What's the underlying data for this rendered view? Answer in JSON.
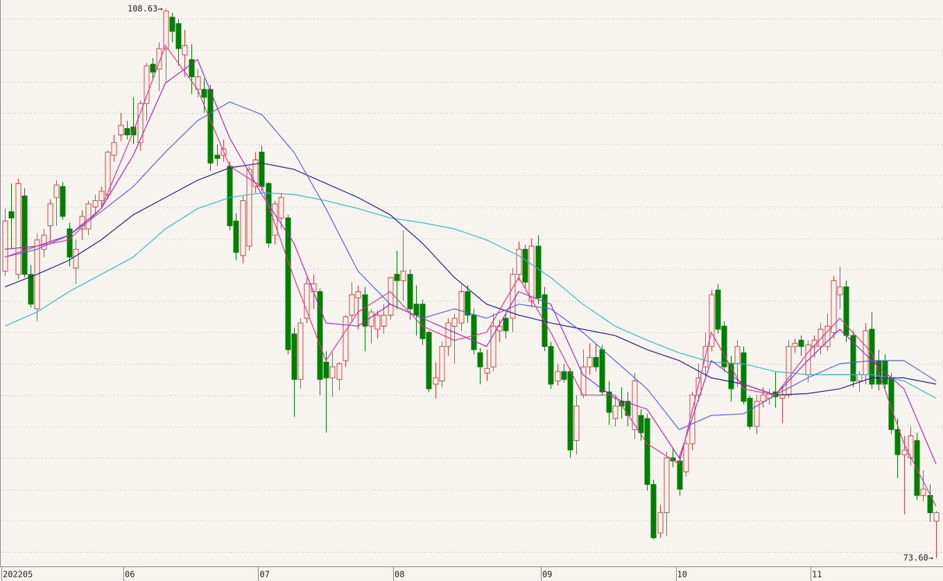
{
  "chart_data": {
    "type": "candlestick",
    "ylim": [
      73.07,
      109.2
    ],
    "grid_lines": [
      74,
      76,
      78,
      80,
      82,
      84,
      86,
      88,
      90,
      92,
      94,
      96,
      98,
      100,
      102,
      104,
      106,
      108
    ],
    "up_color": "#e0403c",
    "down_color": "#008000",
    "categories": [
      "202205",
      null,
      null,
      null,
      null,
      null,
      null,
      null,
      null,
      null,
      null,
      null,
      null,
      null,
      null,
      null,
      null,
      null,
      null,
      "06",
      null,
      null,
      null,
      null,
      null,
      null,
      null,
      null,
      null,
      null,
      null,
      null,
      null,
      null,
      null,
      null,
      null,
      null,
      null,
      null,
      "07",
      null,
      null,
      null,
      null,
      null,
      null,
      null,
      null,
      null,
      null,
      null,
      null,
      null,
      null,
      null,
      null,
      null,
      null,
      null,
      null,
      "08",
      null,
      null,
      null,
      null,
      null,
      null,
      null,
      null,
      null,
      null,
      null,
      null,
      null,
      null,
      null,
      null,
      null,
      null,
      null,
      null,
      null,
      null,
      "09",
      null,
      null,
      null,
      null,
      null,
      null,
      null,
      null,
      null,
      null,
      null,
      null,
      null,
      null,
      null,
      null,
      null,
      null,
      null,
      null,
      "10",
      null,
      null,
      null,
      null,
      null,
      null,
      null,
      null,
      null,
      null,
      null,
      null,
      null,
      null,
      null,
      null,
      null,
      null,
      null,
      null,
      "11",
      null,
      null,
      null,
      null,
      null,
      null,
      null,
      null,
      null,
      null,
      null,
      null,
      null,
      null,
      null,
      null,
      null,
      null,
      null
    ],
    "ohlc": [
      [
        91.9,
        95.9,
        91.6,
        95.1
      ],
      [
        95.7,
        97.5,
        93.3,
        95.3
      ],
      [
        91.7,
        97.8,
        91.4,
        97.5
      ],
      [
        96.7,
        97.2,
        91.5,
        91.7
      ],
      [
        91.7,
        92.3,
        89.6,
        89.8
      ],
      [
        89.5,
        94.3,
        88.7,
        93.9
      ],
      [
        93.3,
        94.6,
        92.8,
        94.2
      ],
      [
        94.8,
        96.5,
        93.6,
        96.2
      ],
      [
        96.6,
        97.7,
        94.8,
        97.4
      ],
      [
        97.3,
        97.6,
        95.2,
        95.4
      ],
      [
        94.6,
        95.0,
        92.2,
        92.8
      ],
      [
        92.1,
        93.9,
        91.1,
        93.3
      ],
      [
        94.6,
        95.8,
        93.9,
        95.4
      ],
      [
        94.6,
        96.4,
        94.2,
        96.2
      ],
      [
        96.0,
        96.8,
        95.6,
        96.4
      ],
      [
        96.4,
        97.3,
        96.0,
        97.0
      ],
      [
        96.8,
        99.6,
        96.5,
        99.5
      ],
      [
        99.3,
        100.6,
        98.9,
        100.1
      ],
      [
        100.6,
        102.0,
        100.2,
        101.2
      ],
      [
        101.0,
        101.5,
        100.3,
        100.6
      ],
      [
        101.1,
        103.0,
        100.0,
        100.6
      ],
      [
        100.1,
        102.8,
        99.6,
        102.6
      ],
      [
        102.6,
        105.2,
        101.5,
        105.0
      ],
      [
        105.1,
        105.5,
        104.1,
        104.6
      ],
      [
        104.8,
        106.5,
        103.4,
        106.1
      ],
      [
        106.1,
        108.63,
        104.0,
        108.5
      ],
      [
        108.1,
        108.4,
        106.5,
        107.2
      ],
      [
        107.7,
        108.0,
        105.0,
        106.1
      ],
      [
        105.7,
        107.3,
        104.3,
        106.3
      ],
      [
        105.4,
        106.4,
        103.2,
        104.3
      ],
      [
        103.5,
        104.8,
        103.0,
        104.3
      ],
      [
        103.5,
        104.2,
        102.0,
        103.0
      ],
      [
        103.5,
        103.8,
        98.3,
        98.8
      ],
      [
        99.3,
        100.0,
        98.6,
        99.1
      ],
      [
        99.3,
        100.3,
        98.9,
        99.7
      ],
      [
        98.6,
        98.9,
        94.5,
        94.8
      ],
      [
        95.1,
        95.6,
        92.6,
        93.1
      ],
      [
        92.9,
        96.7,
        92.4,
        96.4
      ],
      [
        93.5,
        98.6,
        93.2,
        98.4
      ],
      [
        97.3,
        99.5,
        96.9,
        99.0
      ],
      [
        99.5,
        99.9,
        97.0,
        97.3
      ],
      [
        97.5,
        97.6,
        93.4,
        93.7
      ],
      [
        94.2,
        96.4,
        93.6,
        96.2
      ],
      [
        95.3,
        96.9,
        94.6,
        96.6
      ],
      [
        95.3,
        95.5,
        86.6,
        86.9
      ],
      [
        87.9,
        88.3,
        82.6,
        85.0
      ],
      [
        85.0,
        88.9,
        84.4,
        88.6
      ],
      [
        88.9,
        91.5,
        88.6,
        91.1
      ],
      [
        90.6,
        91.7,
        89.5,
        91.1
      ],
      [
        90.6,
        90.8,
        84.0,
        85.0
      ],
      [
        86.1,
        86.8,
        81.6,
        85.1
      ],
      [
        85.1,
        86.7,
        83.9,
        85.8
      ],
      [
        85.0,
        86.1,
        84.3,
        86.0
      ],
      [
        86.2,
        89.1,
        85.8,
        89.0
      ],
      [
        89.1,
        91.2,
        88.6,
        90.4
      ],
      [
        90.2,
        91.0,
        88.2,
        90.6
      ],
      [
        90.4,
        90.9,
        86.8,
        88.4
      ],
      [
        88.4,
        89.5,
        87.3,
        89.3
      ],
      [
        88.2,
        89.4,
        87.6,
        89.1
      ],
      [
        88.4,
        89.8,
        87.9,
        89.1
      ],
      [
        89.1,
        91.5,
        88.8,
        91.5
      ],
      [
        91.7,
        93.2,
        89.5,
        91.3
      ],
      [
        91.3,
        94.5,
        90.0,
        91.9
      ],
      [
        91.7,
        92.0,
        88.8,
        89.5
      ],
      [
        89.8,
        91.0,
        87.8,
        89.1
      ],
      [
        89.8,
        90.1,
        87.2,
        87.6
      ],
      [
        88.0,
        88.1,
        84.2,
        84.4
      ],
      [
        84.7,
        86.1,
        83.8,
        85.1
      ],
      [
        84.9,
        87.4,
        84.5,
        87.1
      ],
      [
        87.1,
        88.9,
        86.5,
        88.6
      ],
      [
        88.4,
        89.2,
        86.0,
        88.9
      ],
      [
        88.6,
        91.0,
        88.1,
        90.6
      ],
      [
        90.6,
        91.0,
        88.6,
        89.1
      ],
      [
        89.1,
        89.5,
        86.6,
        86.9
      ],
      [
        86.7,
        87.0,
        84.7,
        85.8
      ],
      [
        85.4,
        86.9,
        84.9,
        85.7
      ],
      [
        85.8,
        89.2,
        85.5,
        88.4
      ],
      [
        88.1,
        88.8,
        87.4,
        88.4
      ],
      [
        88.9,
        89.2,
        87.6,
        88.1
      ],
      [
        88.9,
        92.1,
        88.0,
        91.7
      ],
      [
        91.7,
        93.8,
        91.3,
        93.3
      ],
      [
        93.3,
        93.6,
        90.8,
        91.2
      ],
      [
        90.0,
        94.0,
        89.6,
        93.5
      ],
      [
        93.5,
        94.2,
        89.8,
        90.2
      ],
      [
        90.4,
        90.9,
        86.8,
        87.1
      ],
      [
        87.1,
        87.4,
        84.4,
        84.7
      ],
      [
        84.9,
        86.0,
        84.6,
        85.5
      ],
      [
        85.5,
        86.0,
        84.8,
        85.0
      ],
      [
        85.5,
        85.7,
        80.0,
        80.5
      ],
      [
        81.1,
        84.0,
        80.2,
        83.3
      ],
      [
        84.0,
        86.9,
        83.8,
        85.8
      ],
      [
        85.8,
        87.3,
        85.3,
        86.4
      ],
      [
        86.4,
        87.3,
        85.5,
        85.8
      ],
      [
        86.9,
        87.2,
        84.0,
        84.2
      ],
      [
        84.2,
        84.9,
        82.1,
        82.9
      ],
      [
        82.5,
        84.0,
        82.0,
        83.3
      ],
      [
        83.6,
        84.5,
        82.5,
        83.3
      ],
      [
        83.6,
        84.2,
        82.0,
        82.7
      ],
      [
        81.8,
        85.4,
        81.2,
        84.9
      ],
      [
        82.7,
        83.1,
        81.1,
        81.6
      ],
      [
        82.5,
        82.8,
        77.9,
        78.3
      ],
      [
        78.3,
        78.6,
        74.8,
        74.9
      ],
      [
        75.2,
        77.0,
        74.9,
        76.5
      ],
      [
        76.5,
        80.4,
        75.0,
        80.0
      ],
      [
        80.0,
        80.6,
        79.4,
        79.8
      ],
      [
        79.8,
        80.2,
        77.6,
        78.0
      ],
      [
        79.1,
        81.1,
        78.8,
        80.9
      ],
      [
        80.9,
        84.2,
        80.5,
        84.0
      ],
      [
        84.0,
        86.0,
        83.6,
        85.1
      ],
      [
        85.8,
        88.0,
        85.2,
        87.1
      ],
      [
        87.1,
        90.7,
        86.8,
        90.4
      ],
      [
        90.7,
        91.1,
        87.9,
        88.2
      ],
      [
        88.4,
        88.7,
        85.5,
        85.8
      ],
      [
        86.0,
        86.5,
        83.6,
        84.4
      ],
      [
        86.0,
        87.5,
        84.5,
        87.1
      ],
      [
        86.7,
        87.1,
        83.4,
        83.6
      ],
      [
        83.8,
        84.0,
        81.8,
        82.0
      ],
      [
        82.0,
        84.0,
        81.5,
        83.6
      ],
      [
        83.6,
        84.5,
        83.2,
        84.0
      ],
      [
        83.8,
        84.4,
        83.4,
        84.1
      ],
      [
        84.2,
        85.5,
        83.2,
        83.9
      ],
      [
        83.8,
        84.6,
        82.2,
        84.0
      ],
      [
        84.0,
        87.5,
        83.8,
        87.1
      ],
      [
        87.1,
        87.6,
        86.7,
        87.3
      ],
      [
        87.5,
        87.8,
        86.5,
        87.1
      ],
      [
        85.3,
        87.5,
        84.8,
        87.2
      ],
      [
        87.1,
        87.8,
        86.4,
        87.5
      ],
      [
        87.1,
        88.6,
        86.6,
        88.2
      ],
      [
        87.1,
        89.2,
        86.8,
        88.4
      ],
      [
        88.0,
        91.6,
        87.6,
        91.3
      ],
      [
        90.4,
        92.2,
        89.5,
        90.9
      ],
      [
        90.9,
        91.3,
        87.4,
        87.8
      ],
      [
        87.8,
        88.1,
        84.5,
        84.9
      ],
      [
        84.9,
        85.5,
        84.2,
        85.3
      ],
      [
        85.3,
        88.6,
        84.7,
        88.1
      ],
      [
        88.2,
        89.3,
        84.4,
        84.7
      ],
      [
        86.2,
        86.9,
        84.3,
        84.7
      ],
      [
        86.2,
        86.6,
        84.4,
        84.7
      ],
      [
        85.1,
        85.4,
        81.5,
        81.8
      ],
      [
        81.8,
        82.5,
        78.7,
        80.2
      ],
      [
        80.2,
        81.4,
        76.4,
        80.5
      ],
      [
        80.0,
        82.0,
        79.5,
        81.4
      ],
      [
        81.1,
        81.6,
        77.3,
        77.6
      ],
      [
        77.6,
        79.2,
        77.2,
        78.0
      ],
      [
        77.6,
        78.3,
        75.9,
        76.5
      ],
      [
        75.96,
        76.6,
        73.6,
        76.5
      ]
    ],
    "lines": [
      {
        "color": "#30b8c8",
        "x": [
          0,
          5,
          10,
          15,
          20,
          25,
          30,
          35,
          40,
          45,
          50,
          55,
          60,
          65,
          70,
          75,
          80,
          85,
          90,
          95,
          100,
          105,
          110,
          115,
          120,
          125,
          130,
          135,
          140,
          145
        ],
        "values": [
          88.4,
          89.3,
          90.6,
          91.7,
          92.8,
          94.6,
          95.9,
          96.6,
          96.9,
          96.8,
          96.4,
          95.9,
          95.3,
          95.0,
          94.6,
          93.9,
          92.9,
          91.5,
          89.8,
          88.4,
          87.5,
          86.7,
          86.1,
          86.0,
          85.5,
          85.3,
          85.3,
          85.3,
          84.9,
          83.8
        ]
      },
      {
        "color": "#1a1a8c",
        "x": [
          0,
          5,
          10,
          15,
          20,
          25,
          30,
          35,
          40,
          45,
          50,
          55,
          60,
          65,
          70,
          75,
          80,
          85,
          90,
          95,
          100,
          105,
          110,
          115,
          120,
          125,
          130,
          135,
          140,
          145
        ],
        "values": [
          90.9,
          91.7,
          92.6,
          93.9,
          95.5,
          96.6,
          97.7,
          98.5,
          98.8,
          98.4,
          97.5,
          96.6,
          95.5,
          93.7,
          91.5,
          89.8,
          89.1,
          88.6,
          88.2,
          87.8,
          86.9,
          86.2,
          85.1,
          84.7,
          84.0,
          84.1,
          84.4,
          85.1,
          85.1,
          84.7
        ]
      },
      {
        "color": "#4a62f0",
        "x": [
          0,
          5,
          10,
          15,
          20,
          25,
          30,
          35,
          40,
          45,
          50,
          55,
          60,
          65,
          70,
          75,
          80,
          85,
          90,
          95,
          100,
          105,
          110,
          115,
          120,
          125,
          130,
          135,
          140,
          145
        ],
        "values": [
          92.8,
          93.3,
          94.2,
          95.7,
          97.3,
          99.5,
          101.5,
          102.7,
          101.9,
          99.5,
          95.9,
          91.9,
          89.8,
          88.9,
          89.5,
          88.9,
          89.8,
          89.5,
          88.0,
          86.2,
          84.4,
          81.8,
          82.7,
          82.8,
          84.0,
          85.1,
          86.0,
          86.2,
          86.2,
          84.9
        ]
      },
      {
        "color": "#b020c8",
        "x": [
          0,
          5,
          10,
          15,
          20,
          25,
          30,
          35,
          40,
          45,
          50,
          55,
          60,
          65,
          70,
          75,
          80,
          85,
          90,
          95,
          100,
          105,
          110,
          115,
          120,
          125,
          130,
          135,
          140,
          145
        ],
        "values": [
          93.3,
          93.5,
          94.2,
          95.9,
          99.3,
          103.9,
          105.4,
          100.4,
          96.8,
          93.7,
          88.6,
          88.4,
          89.8,
          88.9,
          88.0,
          87.1,
          90.6,
          89.8,
          85.3,
          83.8,
          83.1,
          80.0,
          86.2,
          84.7,
          84.0,
          86.2,
          88.2,
          86.2,
          84.4,
          79.6
        ]
      },
      {
        "color": "#f0308a",
        "x": [
          0,
          5,
          10,
          15,
          20,
          25,
          30,
          35,
          40,
          45,
          50,
          55,
          60,
          65,
          70,
          75,
          80,
          85,
          90,
          95,
          100,
          105,
          110,
          115,
          120,
          125,
          130,
          135,
          140,
          145
        ],
        "values": [
          92.8,
          93.5,
          93.9,
          95.9,
          100.8,
          106.3,
          103.5,
          98.6,
          97.3,
          91.5,
          86.2,
          89.3,
          90.6,
          88.4,
          87.5,
          88.0,
          91.5,
          88.0,
          84.0,
          84.0,
          80.9,
          79.6,
          88.0,
          84.4,
          84.0,
          86.7,
          88.9,
          86.7,
          80.9,
          76.9
        ]
      }
    ],
    "annotations": [
      {
        "value": 108.63,
        "label": "108.63→"
      },
      {
        "value": 73.6,
        "label": "73.60→"
      }
    ]
  }
}
